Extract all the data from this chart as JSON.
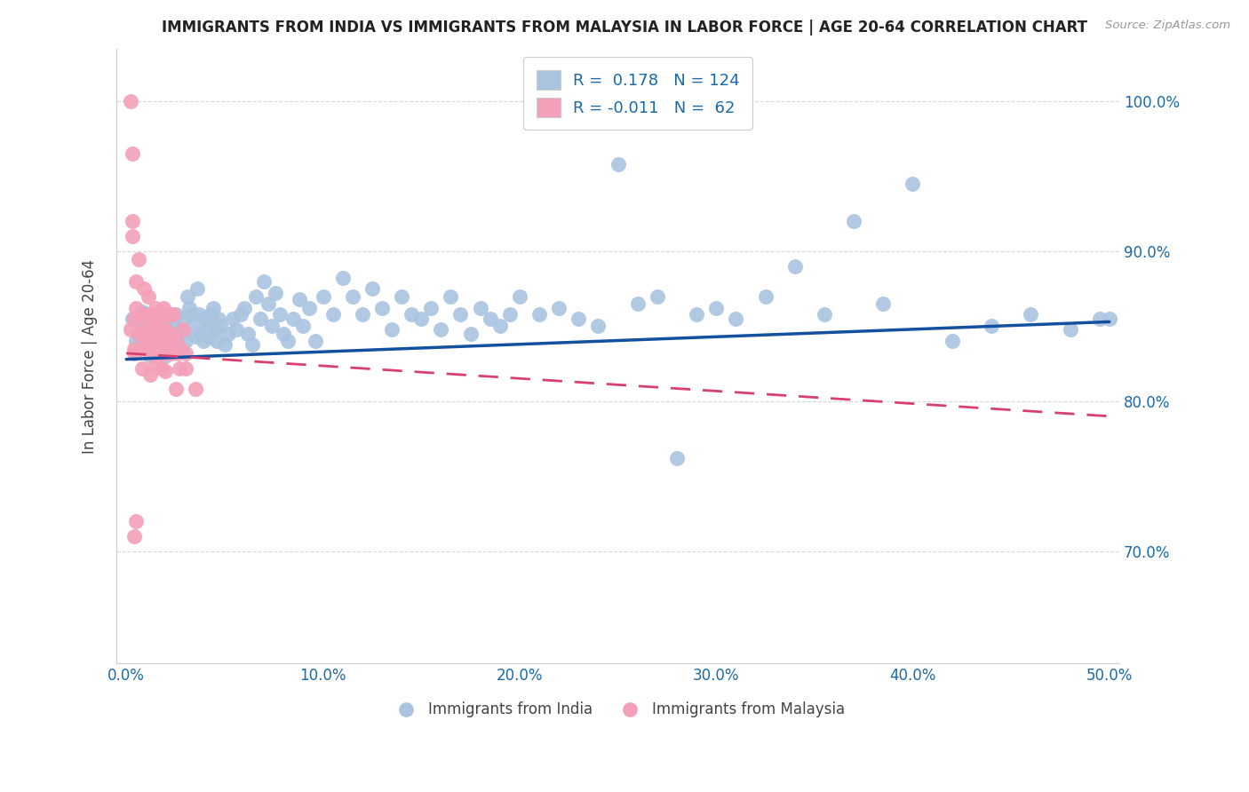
{
  "title": "IMMIGRANTS FROM INDIA VS IMMIGRANTS FROM MALAYSIA IN LABOR FORCE | AGE 20-64 CORRELATION CHART",
  "source": "Source: ZipAtlas.com",
  "ylabel": "In Labor Force | Age 20-64",
  "y_ticks": [
    "70.0%",
    "80.0%",
    "90.0%",
    "100.0%"
  ],
  "y_tick_vals": [
    0.7,
    0.8,
    0.9,
    1.0
  ],
  "xlim": [
    -0.005,
    0.505
  ],
  "ylim": [
    0.625,
    1.035
  ],
  "legend_r_india": "0.178",
  "legend_n_india": "124",
  "legend_r_malaysia": "-0.011",
  "legend_n_malaysia": "62",
  "color_india": "#aac4e0",
  "color_malaysia": "#f4a0b8",
  "line_color_india": "#1450a0",
  "line_color_malaysia": "#d84070",
  "background_color": "#ffffff",
  "grid_color": "#d8d8d8",
  "india_line_y0": 0.828,
  "india_line_y1": 0.853,
  "malaysia_line_y0": 0.832,
  "malaysia_line_y1": 0.79,
  "india_x": [
    0.003,
    0.005,
    0.006,
    0.007,
    0.008,
    0.009,
    0.01,
    0.01,
    0.011,
    0.012,
    0.012,
    0.013,
    0.014,
    0.015,
    0.015,
    0.016,
    0.017,
    0.018,
    0.019,
    0.02,
    0.021,
    0.022,
    0.023,
    0.024,
    0.025,
    0.026,
    0.027,
    0.028,
    0.029,
    0.03,
    0.031,
    0.032,
    0.033,
    0.034,
    0.035,
    0.036,
    0.037,
    0.038,
    0.039,
    0.04,
    0.041,
    0.042,
    0.043,
    0.044,
    0.045,
    0.046,
    0.047,
    0.048,
    0.05,
    0.052,
    0.054,
    0.056,
    0.058,
    0.06,
    0.062,
    0.064,
    0.066,
    0.068,
    0.07,
    0.072,
    0.074,
    0.076,
    0.078,
    0.08,
    0.082,
    0.085,
    0.088,
    0.09,
    0.093,
    0.096,
    0.1,
    0.105,
    0.11,
    0.115,
    0.12,
    0.125,
    0.13,
    0.135,
    0.14,
    0.145,
    0.15,
    0.155,
    0.16,
    0.165,
    0.17,
    0.175,
    0.18,
    0.185,
    0.19,
    0.195,
    0.2,
    0.21,
    0.22,
    0.23,
    0.24,
    0.25,
    0.26,
    0.27,
    0.28,
    0.29,
    0.3,
    0.31,
    0.325,
    0.34,
    0.355,
    0.37,
    0.385,
    0.4,
    0.42,
    0.44,
    0.46,
    0.48,
    0.495,
    0.5
  ],
  "india_y": [
    0.855,
    0.84,
    0.845,
    0.855,
    0.86,
    0.848,
    0.838,
    0.852,
    0.845,
    0.83,
    0.858,
    0.85,
    0.843,
    0.855,
    0.84,
    0.845,
    0.852,
    0.838,
    0.848,
    0.83,
    0.855,
    0.845,
    0.838,
    0.85,
    0.858,
    0.842,
    0.835,
    0.848,
    0.855,
    0.84,
    0.87,
    0.862,
    0.858,
    0.85,
    0.843,
    0.875,
    0.858,
    0.845,
    0.84,
    0.855,
    0.85,
    0.843,
    0.858,
    0.862,
    0.848,
    0.84,
    0.855,
    0.85,
    0.838,
    0.845,
    0.855,
    0.848,
    0.858,
    0.862,
    0.845,
    0.838,
    0.87,
    0.855,
    0.88,
    0.865,
    0.85,
    0.872,
    0.858,
    0.845,
    0.84,
    0.855,
    0.868,
    0.85,
    0.862,
    0.84,
    0.87,
    0.858,
    0.882,
    0.87,
    0.858,
    0.875,
    0.862,
    0.848,
    0.87,
    0.858,
    0.855,
    0.862,
    0.848,
    0.87,
    0.858,
    0.845,
    0.862,
    0.855,
    0.85,
    0.858,
    0.87,
    0.858,
    0.862,
    0.855,
    0.85,
    0.958,
    0.865,
    0.87,
    0.762,
    0.858,
    0.862,
    0.855,
    0.87,
    0.89,
    0.858,
    0.92,
    0.865,
    0.945,
    0.84,
    0.85,
    0.858,
    0.848,
    0.855,
    0.855
  ],
  "malaysia_x": [
    0.002,
    0.003,
    0.003,
    0.004,
    0.004,
    0.005,
    0.005,
    0.006,
    0.006,
    0.007,
    0.007,
    0.008,
    0.008,
    0.009,
    0.009,
    0.01,
    0.01,
    0.011,
    0.011,
    0.012,
    0.012,
    0.013,
    0.013,
    0.014,
    0.014,
    0.015,
    0.015,
    0.016,
    0.016,
    0.017,
    0.017,
    0.018,
    0.018,
    0.019,
    0.019,
    0.02,
    0.02,
    0.021,
    0.021,
    0.022,
    0.022,
    0.023,
    0.023,
    0.024,
    0.025,
    0.026,
    0.027,
    0.028,
    0.029,
    0.03,
    0.002,
    0.003,
    0.004,
    0.012,
    0.015,
    0.018,
    0.02,
    0.025,
    0.03,
    0.035,
    0.004,
    0.005
  ],
  "malaysia_y": [
    0.848,
    0.92,
    0.91,
    0.832,
    0.855,
    0.88,
    0.862,
    0.895,
    0.845,
    0.858,
    0.835,
    0.822,
    0.845,
    0.875,
    0.858,
    0.835,
    0.852,
    0.87,
    0.84,
    0.858,
    0.818,
    0.84,
    0.855,
    0.835,
    0.848,
    0.825,
    0.862,
    0.84,
    0.855,
    0.832,
    0.845,
    0.858,
    0.835,
    0.848,
    0.862,
    0.832,
    0.848,
    0.858,
    0.835,
    0.845,
    0.858,
    0.84,
    0.832,
    0.858,
    0.84,
    0.832,
    0.822,
    0.835,
    0.848,
    0.832,
    1.0,
    0.965,
    0.835,
    0.835,
    0.845,
    0.822,
    0.82,
    0.808,
    0.822,
    0.808,
    0.71,
    0.72
  ]
}
